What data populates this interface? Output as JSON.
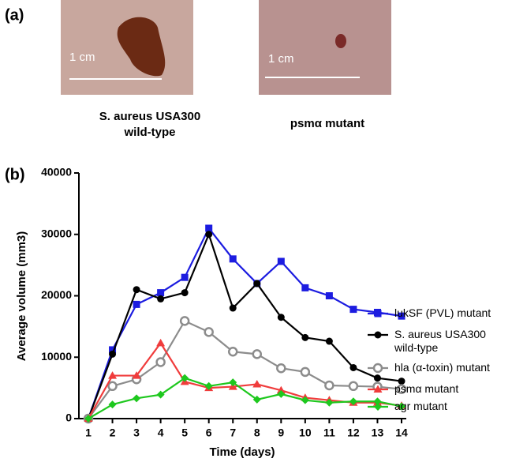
{
  "panel_a": {
    "label": "(a)",
    "photos": [
      {
        "scale_label": "1 cm",
        "caption": "S. aureus USA300 wild-type"
      },
      {
        "scale_label": "1 cm",
        "caption": "psmα mutant"
      }
    ]
  },
  "chart_data": {
    "type": "line",
    "panel_label": "(b)",
    "x_label": "Time (days)",
    "y_label": "Average volume (mm3)",
    "x": [
      1,
      2,
      3,
      4,
      5,
      6,
      7,
      8,
      9,
      10,
      11,
      12,
      13,
      14
    ],
    "xlim": [
      1,
      14
    ],
    "xticks": [
      1,
      2,
      3,
      4,
      5,
      6,
      7,
      8,
      9,
      10,
      11,
      12,
      13,
      14
    ],
    "ylim": [
      0,
      40000
    ],
    "yticks": [
      0,
      10000,
      20000,
      30000,
      40000
    ],
    "series": [
      {
        "name": "lukSF (PVL) mutant",
        "color": "#1c1ce0",
        "marker": "square",
        "values": [
          0,
          11200,
          18600,
          20500,
          23000,
          31000,
          26000,
          22000,
          25600,
          21300,
          20000,
          17800,
          17300,
          16700
        ]
      },
      {
        "name": "S. aureus USA300 wild-type",
        "color": "#000000",
        "marker": "circle",
        "values": [
          0,
          10500,
          21000,
          19500,
          20500,
          30000,
          18000,
          22000,
          16500,
          13200,
          12600,
          8300,
          6600,
          6100
        ]
      },
      {
        "name": "hla (α-toxin) mutant",
        "color": "#8c8c8c",
        "marker": "open-circle",
        "values": [
          0,
          5300,
          6400,
          9200,
          15900,
          14100,
          10900,
          10500,
          8200,
          7600,
          5400,
          5300,
          5200,
          4800
        ]
      },
      {
        "name": "psmα mutant",
        "color": "#f03c3c",
        "marker": "triangle",
        "values": [
          0,
          7000,
          7000,
          12300,
          6000,
          5000,
          5200,
          5600,
          4600,
          3400,
          3000,
          2600,
          2600,
          2100
        ]
      },
      {
        "name": "agr mutant",
        "color": "#1ec81e",
        "marker": "diamond",
        "values": [
          0,
          2300,
          3300,
          3900,
          6600,
          5300,
          5900,
          3100,
          4000,
          3000,
          2600,
          2800,
          2800,
          2000
        ]
      }
    ]
  }
}
